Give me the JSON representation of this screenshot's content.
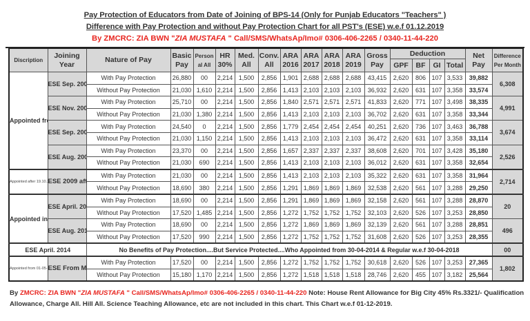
{
  "header": {
    "title_line1": "Pay Protection of Educators from Date of Joining of BPS-14 (Only for Punjab Educators \"Teachers\" )",
    "title_line2": "Difference with Pay Protection and without Pay Protection Chart for all PST's (ESE) w.e.f 01.12.2019",
    "author_prefix": "By ZMCRC: ZIA BWN \"",
    "author_name": "ZIA MUSTAFA",
    "author_suffix": " \" Call/SMS/WhatsAp/Imo#  0306-406-2265 / 0340-11-44-220"
  },
  "columns": {
    "description": "Discription",
    "joining_year": "Joining Year",
    "nature": "Nature of Pay",
    "basic": "Basic Pay",
    "personal": "Person al All",
    "hr": "HR 30%",
    "med": "Med. All",
    "conv": "Conv. All",
    "ara2016": "ARA 2016",
    "ara2017": "ARA 2017",
    "ara2018": "ARA 2018",
    "ara2019": "ARA 2019",
    "gross": "Gross Pay",
    "deduction": "Deduction",
    "gpf": "GPF",
    "bf": "BF",
    "gi": "GI",
    "total": "Total",
    "net": "Net Pay",
    "difference": "Difference Per Month"
  },
  "groups": [
    {
      "description": "Appointed from Sep 2002 to 19.10.2009 & Regularized w.e.f 19.10.2009",
      "entries": [
        {
          "year": "ESE Sep. 2002",
          "difference": "6,308",
          "rows": [
            {
              "nature": "With Pay Protection",
              "basic": "26,880",
              "personal": "00",
              "hr": "2,214",
              "med": "1,500",
              "conv": "2,856",
              "ara2016": "1,901",
              "ara2017": "2,688",
              "ara2018": "2,688",
              "ara2019": "2,688",
              "gross": "43,415",
              "gpf": "2,620",
              "bf": "806",
              "gi": "107",
              "total": "3,533",
              "net": "39,882"
            },
            {
              "nature": "Without Pay Protection",
              "basic": "21,030",
              "personal": "1,610",
              "hr": "2,214",
              "med": "1,500",
              "conv": "2,856",
              "ara2016": "1,413",
              "ara2017": "2,103",
              "ara2018": "2,103",
              "ara2019": "2,103",
              "gross": "36,932",
              "gpf": "2,620",
              "bf": "631",
              "gi": "107",
              "total": "3,358",
              "net": "33,574"
            }
          ]
        },
        {
          "year": "ESE Nov. 2003",
          "difference": "4,991",
          "rows": [
            {
              "nature": "With Pay Protection",
              "basic": "25,710",
              "personal": "00",
              "hr": "2,214",
              "med": "1,500",
              "conv": "2,856",
              "ara2016": "1,840",
              "ara2017": "2,571",
              "ara2018": "2,571",
              "ara2019": "2,571",
              "gross": "41,833",
              "gpf": "2,620",
              "bf": "771",
              "gi": "107",
              "total": "3,498",
              "net": "38,335"
            },
            {
              "nature": "Without Pay Protection",
              "basic": "21,030",
              "personal": "1,380",
              "hr": "2,214",
              "med": "1,500",
              "conv": "2,856",
              "ara2016": "1,413",
              "ara2017": "2,103",
              "ara2018": "2,103",
              "ara2019": "2,103",
              "gross": "36,702",
              "gpf": "2,620",
              "bf": "631",
              "gi": "107",
              "total": "3,358",
              "net": "33,344"
            }
          ]
        },
        {
          "year": "ESE Sep. 2004",
          "difference": "3,674",
          "rows": [
            {
              "nature": "With Pay Protection",
              "basic": "24,540",
              "personal": "0",
              "hr": "2,214",
              "med": "1,500",
              "conv": "2,856",
              "ara2016": "1,779",
              "ara2017": "2,454",
              "ara2018": "2,454",
              "ara2019": "2,454",
              "gross": "40,251",
              "gpf": "2,620",
              "bf": "736",
              "gi": "107",
              "total": "3,463",
              "net": "36,788"
            },
            {
              "nature": "Without Pay Protection",
              "basic": "21,030",
              "personal": "1,150",
              "hr": "2,214",
              "med": "1,500",
              "conv": "2,856",
              "ara2016": "1,413",
              "ara2017": "2,103",
              "ara2018": "2,103",
              "ara2019": "2,103",
              "gross": "36,472",
              "gpf": "2,620",
              "bf": "631",
              "gi": "107",
              "total": "3,358",
              "net": "33,114"
            }
          ]
        },
        {
          "year": "ESE Aug. 2006",
          "difference": "2,526",
          "rows": [
            {
              "nature": "With Pay Protection",
              "basic": "23,370",
              "personal": "00",
              "hr": "2,214",
              "med": "1,500",
              "conv": "2,856",
              "ara2016": "1,657",
              "ara2017": "2,337",
              "ara2018": "2,337",
              "ara2019": "2,337",
              "gross": "38,608",
              "gpf": "2,620",
              "bf": "701",
              "gi": "107",
              "total": "3,428",
              "net": "35,180"
            },
            {
              "nature": "Without Pay Protection",
              "basic": "21,030",
              "personal": "690",
              "hr": "2,214",
              "med": "1,500",
              "conv": "2,856",
              "ara2016": "1,413",
              "ara2017": "2,103",
              "ara2018": "2,103",
              "ara2019": "2,103",
              "gross": "36,012",
              "gpf": "2,620",
              "bf": "631",
              "gi": "107",
              "total": "3,358",
              "net": "32,654"
            }
          ]
        }
      ]
    },
    {
      "description": "Appointed after 19.10.2009 & Regular w.e.f 10.09.2011",
      "entries": [
        {
          "year": "ESE 2009 after 19.10.2009",
          "difference": "2,714",
          "rows": [
            {
              "nature": "With Pay Protection",
              "basic": "21,030",
              "personal": "00",
              "hr": "2,214",
              "med": "1,500",
              "conv": "2,856",
              "ara2016": "1,413",
              "ara2017": "2,103",
              "ara2018": "2,103",
              "ara2019": "2,103",
              "gross": "35,322",
              "gpf": "2,620",
              "bf": "631",
              "gi": "107",
              "total": "3,358",
              "net": "31,964"
            },
            {
              "nature": "Without Pay Protection",
              "basic": "18,690",
              "personal": "380",
              "hr": "2,214",
              "med": "1,500",
              "conv": "2,856",
              "ara2016": "1,291",
              "ara2017": "1,869",
              "ara2018": "1,869",
              "ara2019": "1,869",
              "gross": "32,538",
              "gpf": "2,620",
              "bf": "561",
              "gi": "107",
              "total": "3,288",
              "net": "29,250"
            }
          ]
        }
      ]
    },
    {
      "description": "Appointed in 2012 & Regularized w.e.f 07.08.2015",
      "entries": [
        {
          "year": "ESE April. 2012",
          "difference": "20",
          "rows": [
            {
              "nature": "With Pay Protection",
              "basic": "18,690",
              "personal": "00",
              "hr": "2,214",
              "med": "1,500",
              "conv": "2,856",
              "ara2016": "1,291",
              "ara2017": "1,869",
              "ara2018": "1,869",
              "ara2019": "1,869",
              "gross": "32,158",
              "gpf": "2,620",
              "bf": "561",
              "gi": "107",
              "total": "3,288",
              "net": "28,870"
            },
            {
              "nature": "Without Pay Protection",
              "basic": "17,520",
              "personal": "1,485",
              "hr": "2,214",
              "med": "1,500",
              "conv": "2,856",
              "ara2016": "1,272",
              "ara2017": "1,752",
              "ara2018": "1,752",
              "ara2019": "1,752",
              "gross": "32,103",
              "gpf": "2,620",
              "bf": "526",
              "gi": "107",
              "total": "3,253",
              "net": "28,850"
            }
          ]
        },
        {
          "year": "ESE Aug. 2012",
          "difference": "496",
          "rows": [
            {
              "nature": "With Pay Protection",
              "basic": "18,690",
              "personal": "00",
              "hr": "2,214",
              "med": "1,500",
              "conv": "2,856",
              "ara2016": "1,272",
              "ara2017": "1,869",
              "ara2018": "1,869",
              "ara2019": "1,869",
              "gross": "32,139",
              "gpf": "2,620",
              "bf": "561",
              "gi": "107",
              "total": "3,288",
              "net": "28,851"
            },
            {
              "nature": "Without Pay Protection",
              "basic": "17,520",
              "personal": "990",
              "hr": "2,214",
              "med": "1,500",
              "conv": "2,856",
              "ara2016": "1,272",
              "ara2017": "1,752",
              "ara2018": "1,752",
              "ara2019": "1,752",
              "gross": "31,608",
              "gpf": "2,620",
              "bf": "526",
              "gi": "107",
              "total": "3,253",
              "net": "28,355"
            }
          ]
        }
      ]
    }
  ],
  "april2014": {
    "year": "ESE April. 2014",
    "notice": "No Benefits of Pay Protection....But Service Protected....Who Appointed from 30-04-2014 & Regular w.e.f 30-04-2018",
    "difference": "00"
  },
  "may2014": {
    "description": "Appointed from 01-05-2014 to 29-07-2016 & Regularized w.e.f 29.07.2019",
    "year": "ESE From May. 2014",
    "difference": "1,802",
    "rows": [
      {
        "nature": "With Pay Protection",
        "basic": "17,520",
        "personal": "00",
        "hr": "2,214",
        "med": "1,500",
        "conv": "2,856",
        "ara2016": "1,272",
        "ara2017": "1,752",
        "ara2018": "1,752",
        "ara2019": "1,752",
        "gross": "30,618",
        "gpf": "2,620",
        "bf": "526",
        "gi": "107",
        "total": "3,253",
        "net": "27,365"
      },
      {
        "nature": "Without Pay Protection",
        "basic": "15,180",
        "personal": "1,170",
        "hr": "2,214",
        "med": "1,500",
        "conv": "2,856",
        "ara2016": "1,272",
        "ara2017": "1,518",
        "ara2018": "1,518",
        "ara2019": "1,518",
        "gross": "28,746",
        "gpf": "2,620",
        "bf": "455",
        "gi": "107",
        "total": "3,182",
        "net": "25,564"
      }
    ]
  },
  "footer": {
    "by": "By ",
    "author_prefix": "ZMCRC: ZIA BWN \"",
    "author_name": "ZIA MUSTAFA",
    "author_suffix": " \" Call/SMS/WhatsAp/Imo# 0306-406-2265 / 0340-11-44-220",
    "note": " Note: House Rent Allowance for Big City 45% Rs.3321/- Qualification Allowance, Charge All. Hill All. Science Teaching Allowance, etc are not included in this chart. This Chart w.e.f 01-12-2019."
  },
  "colors": {
    "header_fill": "#d8d8d8",
    "accent_red": "#e8251f",
    "border": "#222222"
  }
}
